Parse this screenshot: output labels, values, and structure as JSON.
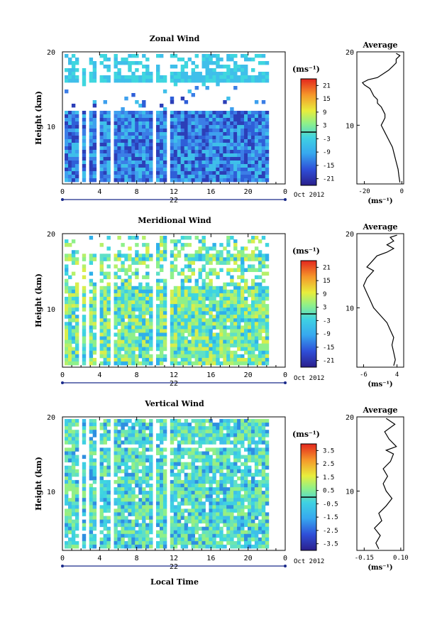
{
  "chart_data": [
    {
      "type": "heatmap",
      "title": "Zonal Wind",
      "ylabel": "Height (km)",
      "xlabel": "",
      "yticks": [
        "20",
        "10"
      ],
      "xticks": [
        "0",
        "4",
        "8",
        "12",
        "16",
        "20",
        "0"
      ],
      "date_label": "22",
      "month_label": "Oct 2012",
      "ylim": [
        2,
        20
      ],
      "xlim": [
        0,
        24
      ],
      "colorbar": {
        "unit": "(ms⁻¹)",
        "ticks": [
          "21",
          "15",
          "9",
          "3",
          "-3",
          "-9",
          "-15",
          "-21"
        ],
        "range": [
          -24,
          24
        ]
      },
      "average": {
        "title": "Average",
        "xticks": [
          "-20",
          "0"
        ],
        "xunit": "(ms⁻¹)",
        "yticks": [
          "20",
          "10"
        ],
        "xlim": [
          -24,
          1
        ],
        "profile": [
          [
            2.2,
            -1
          ],
          [
            3,
            -1.5
          ],
          [
            4,
            -2
          ],
          [
            5,
            -3
          ],
          [
            6,
            -4
          ],
          [
            7,
            -5
          ],
          [
            8,
            -7
          ],
          [
            9,
            -9
          ],
          [
            10,
            -11
          ],
          [
            10.5,
            -10
          ],
          [
            11,
            -9
          ],
          [
            11.5,
            -9
          ],
          [
            12,
            -10
          ],
          [
            12.5,
            -11
          ],
          [
            13,
            -13
          ],
          [
            13.5,
            -13
          ],
          [
            14,
            -15
          ],
          [
            15,
            -17
          ],
          [
            15.5,
            -20
          ],
          [
            15.8,
            -21
          ],
          [
            16.2,
            -18
          ],
          [
            16.5,
            -13
          ],
          [
            17,
            -10
          ],
          [
            17.5,
            -7
          ],
          [
            18,
            -5
          ],
          [
            18.5,
            -3
          ],
          [
            19,
            -3
          ],
          [
            19.5,
            -1
          ],
          [
            19.8,
            -3
          ]
        ]
      }
    },
    {
      "type": "heatmap",
      "title": "Meridional Wind",
      "ylabel": "Height (km)",
      "xlabel": "",
      "yticks": [
        "20",
        "10"
      ],
      "xticks": [
        "0",
        "4",
        "8",
        "12",
        "16",
        "20",
        "0"
      ],
      "date_label": "22",
      "month_label": "Oct 2012",
      "ylim": [
        2,
        20
      ],
      "xlim": [
        0,
        24
      ],
      "colorbar": {
        "unit": "(ms⁻¹)",
        "ticks": [
          "21",
          "15",
          "9",
          "3",
          "-3",
          "-9",
          "-15",
          "-21"
        ],
        "range": [
          -24,
          24
        ]
      },
      "average": {
        "title": "Average",
        "xticks": [
          "-6",
          "4"
        ],
        "xunit": "(ms⁻¹)",
        "yticks": [
          "20",
          "10"
        ],
        "xlim": [
          -8,
          6
        ],
        "profile": [
          [
            2.2,
            3
          ],
          [
            3,
            3.5
          ],
          [
            4,
            3
          ],
          [
            5,
            2.5
          ],
          [
            6,
            3
          ],
          [
            7,
            2
          ],
          [
            8,
            1
          ],
          [
            9,
            -1
          ],
          [
            10,
            -3
          ],
          [
            11,
            -4
          ],
          [
            12,
            -5
          ],
          [
            13,
            -6
          ],
          [
            14,
            -5
          ],
          [
            15,
            -3
          ],
          [
            15.5,
            -5
          ],
          [
            16,
            -4
          ],
          [
            17,
            -2
          ],
          [
            17.5,
            1
          ],
          [
            18,
            3
          ],
          [
            18.5,
            1
          ],
          [
            19,
            3
          ],
          [
            19.5,
            2
          ],
          [
            19.8,
            4
          ]
        ]
      }
    },
    {
      "type": "heatmap",
      "title": "Vertical Wind",
      "ylabel": "Height (km)",
      "xlabel": "Local Time",
      "yticks": [
        "20",
        "10"
      ],
      "xticks": [
        "0",
        "4",
        "8",
        "12",
        "16",
        "20",
        "0"
      ],
      "date_label": "22",
      "month_label": "Oct 2012",
      "ylim": [
        2,
        20
      ],
      "xlim": [
        0,
        24
      ],
      "colorbar": {
        "unit": "(ms⁻¹)",
        "ticks": [
          "3.5",
          "2.5",
          "1.5",
          "0.5",
          "-0.5",
          "-1.5",
          "-2.5",
          "-3.5"
        ],
        "range": [
          -4,
          4
        ]
      },
      "average": {
        "title": "Average",
        "xticks": [
          "-0.15",
          "0.10"
        ],
        "xunit": "(ms⁻¹)",
        "yticks": [
          "20",
          "10"
        ],
        "xlim": [
          -0.2,
          0.12
        ],
        "profile": [
          [
            2.2,
            -0.05
          ],
          [
            3,
            -0.07
          ],
          [
            4,
            -0.04
          ],
          [
            5,
            -0.08
          ],
          [
            6,
            -0.03
          ],
          [
            7,
            -0.05
          ],
          [
            8,
            0.0
          ],
          [
            9,
            0.04
          ],
          [
            10,
            0.0
          ],
          [
            11,
            -0.02
          ],
          [
            12,
            0.01
          ],
          [
            13,
            -0.02
          ],
          [
            14,
            0.03
          ],
          [
            15,
            0.05
          ],
          [
            15.5,
            0.0
          ],
          [
            16,
            0.07
          ],
          [
            17,
            0.02
          ],
          [
            18,
            -0.01
          ],
          [
            19,
            0.06
          ],
          [
            19.8,
            0.0
          ]
        ]
      }
    }
  ]
}
